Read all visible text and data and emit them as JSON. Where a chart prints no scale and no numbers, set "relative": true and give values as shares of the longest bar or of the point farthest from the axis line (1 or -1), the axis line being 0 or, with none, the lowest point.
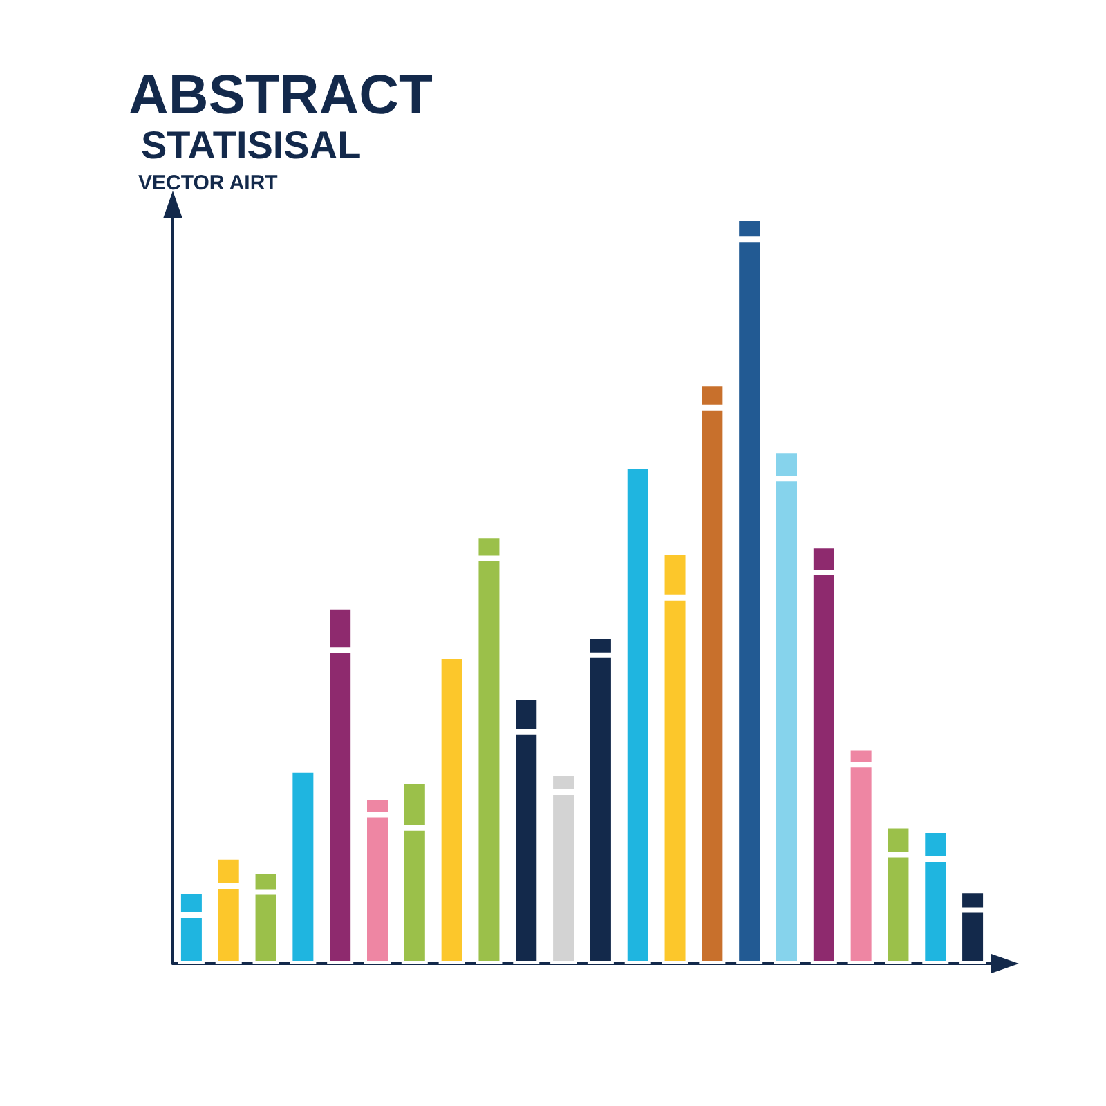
{
  "chart_data": {
    "type": "bar",
    "title": "ABSTRACT",
    "subtitle": "STATISISAL",
    "annotations": [
      "VECTOR AIRT"
    ],
    "relative": true,
    "stacked": true,
    "categories": [
      null,
      null,
      null,
      null,
      null,
      null,
      null,
      null,
      null,
      null,
      null,
      null,
      null,
      null,
      null,
      null,
      null,
      null,
      null,
      null,
      null,
      null
    ],
    "series": [
      {
        "colors": [
          "#1fb5e0",
          "#fcc72b",
          "#9bc04a",
          "#1fb5e0",
          "#8e2a6e",
          "#ee86a3",
          "#9bc04a",
          "#fcc72b",
          "#9bc04a",
          "#13294b",
          "#d3d3d3",
          "#13294b",
          "#1fb5e0",
          "#fcc72b",
          "#c8702c",
          "#225a93",
          "#86d3ec",
          "#8e2a6e",
          "#ee86a3",
          "#9bc04a",
          "#1fb5e0",
          "#13294b"
        ],
        "values": [
          0.065,
          0.104,
          0.096,
          0.26,
          0.421,
          0.2,
          0.182,
          0.412,
          0.544,
          0.311,
          0.23,
          0.414,
          0.668,
          0.491,
          0.746,
          0.972,
          0.651,
          0.525,
          0.267,
          0.146,
          0.14,
          0.072
        ]
      },
      {
        "colors": [
          "#1fb5e0",
          "#fcc72b",
          "#9bc04a",
          "#1fb5e0",
          "#8e2a6e",
          "#ee86a3",
          "#9bc04a",
          "#fcc72b",
          "#9bc04a",
          "#13294b",
          "#d3d3d3",
          "#13294b",
          "#1fb5e0",
          "#fcc72b",
          "#c8702c",
          "#225a93",
          "#86d3ec",
          "#8e2a6e",
          "#ee86a3",
          "#9bc04a",
          "#1fb5e0",
          "#13294b"
        ],
        "values": [
          0.032,
          0.039,
          0.028,
          null,
          0.058,
          0.023,
          0.063,
          null,
          0.03,
          0.047,
          0.026,
          0.025,
          null,
          0.061,
          0.032,
          0.028,
          0.037,
          0.036,
          0.023,
          0.039,
          0.039,
          0.026
        ]
      }
    ]
  }
}
